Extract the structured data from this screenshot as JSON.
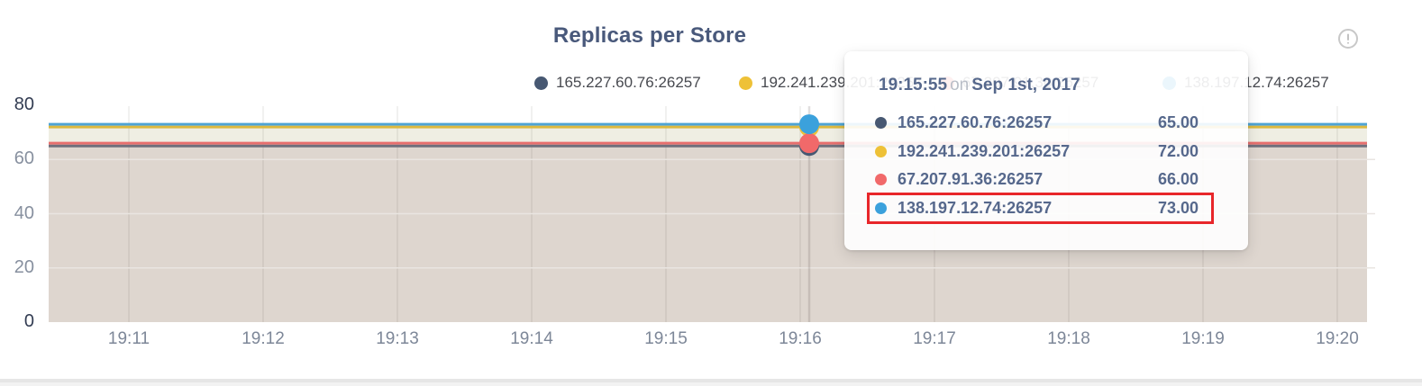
{
  "header": {
    "title": "Replicas per Store",
    "info_icon": "exclamation-circle"
  },
  "legend": {
    "items": [
      {
        "label": "165.227.60.76:26257",
        "color": "#475872"
      },
      {
        "label": "192.241.239.201:26257",
        "color": "#eec137"
      },
      {
        "label": "67.207.91.36:26257",
        "color": "#f1696a"
      },
      {
        "label": "138.197.12.74:26257",
        "color": "#3ba1dc"
      }
    ]
  },
  "chart_data": {
    "type": "area",
    "title": "Replicas per Store",
    "x_ticks": [
      "19:11",
      "19:12",
      "19:13",
      "19:14",
      "19:15",
      "19:16",
      "19:17",
      "19:18",
      "19:19",
      "19:20"
    ],
    "y_ticks": [
      0,
      20,
      40,
      60,
      80
    ],
    "ylim": [
      0,
      80
    ],
    "grid": true,
    "legend_position": "top",
    "series": [
      {
        "name": "165.227.60.76:26257",
        "value": 65,
        "color": "#475872",
        "line_color": "#6e6f7c"
      },
      {
        "name": "192.241.239.201:26257",
        "value": 72,
        "color": "#eec137",
        "line_color": "#dcb93f"
      },
      {
        "name": "67.207.91.36:26257",
        "value": 66,
        "color": "#f1696a",
        "line_color": "#e76f6e"
      },
      {
        "name": "138.197.12.74:26257",
        "value": 73,
        "color": "#3ba1dc",
        "line_color": "#4ea4d5"
      }
    ],
    "fills": {
      "lower_band": "#ded6cf",
      "mid_band": "#efeee3"
    },
    "hover": {
      "time": "19:15:55",
      "near_tick": "19:16"
    }
  },
  "tooltip": {
    "time": "19:15:55",
    "connector": "on",
    "date": "Sep 1st, 2017",
    "highlight_color": "#e8262a",
    "rows": [
      {
        "label": "165.227.60.76:26257",
        "value": "65.00",
        "color": "#475872",
        "highlighted": false
      },
      {
        "label": "192.241.239.201:26257",
        "value": "72.00",
        "color": "#eec137",
        "highlighted": false
      },
      {
        "label": "67.207.91.36:26257",
        "value": "66.00",
        "color": "#f1696a",
        "highlighted": false
      },
      {
        "label": "138.197.12.74:26257",
        "value": "73.00",
        "color": "#3ba1dc",
        "highlighted": true
      }
    ]
  }
}
